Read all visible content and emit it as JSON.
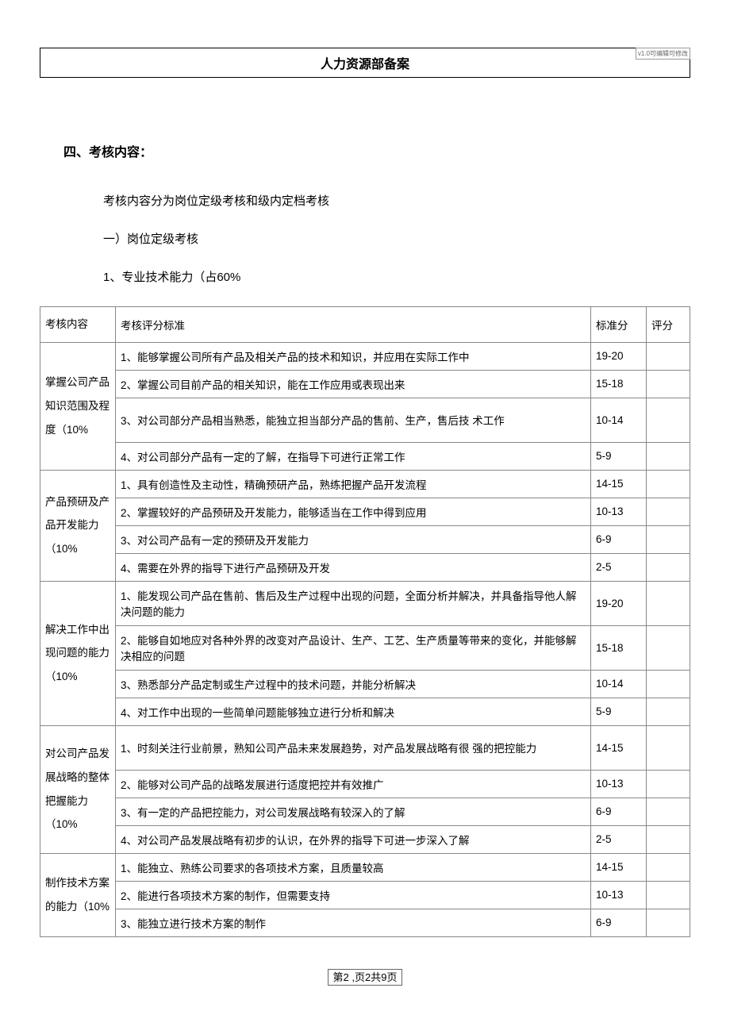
{
  "watermark": "v1.0可编辑可修改",
  "hr_record_title": "人力资源部备案",
  "section4_title": "四、考核内容：",
  "intro_line": "考核内容分为岗位定级考核和级内定档考核",
  "sub1_title": "一）岗位定级考核",
  "sub1_1": "1、专业技术能力（占60%",
  "headers": {
    "content": "考核内容",
    "criteria": "考核评分标准",
    "std": "标准分",
    "score": "评分"
  },
  "groups": [
    {
      "category": "掌握公司产品知识范围及程 度（10%",
      "rows": [
        {
          "text": "1、能够掌握公司所有产品及相关产品的技术和知识，并应用在实际工作中",
          "std": "19-20"
        },
        {
          "text": "2、掌握公司目前产品的相关知识，能在工作应用或表现出来",
          "std": "15-18"
        },
        {
          "text": "3、对公司部分产品相当熟悉，能独立担当部分产品的售前、生产，售后技 术工作",
          "std": "10-14",
          "tall": true
        },
        {
          "text": "4、对公司部分产品有一定的了解，在指导下可进行正常工作",
          "std": "5-9"
        }
      ]
    },
    {
      "category": "产品预研及产品开发能力（10%",
      "rows": [
        {
          "text": "1、具有创造性及主动性，精确预研产品，熟练把握产品开发流程",
          "std": "14-15"
        },
        {
          "text": "2、掌握较好的产品预研及开发能力，能够适当在工作中得到应用",
          "std": "10-13"
        },
        {
          "text": "3、对公司产品有一定的预研及开发能力",
          "std": "6-9"
        },
        {
          "text": "4、需要在外界的指导下进行产品预研及开发",
          "std": "2-5"
        }
      ]
    },
    {
      "category": "解决工作中出现问题的能力（10%",
      "rows": [
        {
          "text": "1、能发现公司产品在售前、售后及生产过程中出现的问题，全面分析并解决，并具备指导他人解决问题的能力",
          "std": "19-20",
          "tall": true
        },
        {
          "text": "2、能够自如地应对各种外界的改变对产品设计、生产、工艺、生产质量等带来的变化，并能够解决相应的问题",
          "std": "15-18",
          "tall": true
        },
        {
          "text": "3、熟悉部分产品定制或生产过程中的技术问题，并能分析解决",
          "std": "10-14"
        },
        {
          "text": "4、对工作中出现的一些简单问题能够独立进行分析和解决",
          "std": "5-9"
        }
      ]
    },
    {
      "category": "对公司产品发展战略的整体把握能力（10%",
      "rows": [
        {
          "text": "1、时刻关注行业前景，熟知公司产品未来发展趋势，对产品发展战略有很 强的把控能力",
          "std": "14-15",
          "tall": true
        },
        {
          "text": "2、能够对公司产品的战略发展进行适度把控并有效推广",
          "std": "10-13"
        },
        {
          "text": "3、有一定的产品把控能力，对公司发展战略有较深入的了解",
          "std": "6-9"
        },
        {
          "text": "4、对公司产品发展战略有初步的认识，在外界的指导下可进一步深入了解",
          "std": "2-5"
        }
      ]
    },
    {
      "category": "制作技术方案的能力（10%",
      "rows": [
        {
          "text": "1、能独立、熟练公司要求的各项技术方案，且质量较高",
          "std": "14-15"
        },
        {
          "text": "2、能进行各项技术方案的制作，但需要支持",
          "std": "10-13"
        },
        {
          "text": "3、能独立进行技术方案的制作",
          "std": "6-9"
        }
      ]
    }
  ],
  "footer": "第2 ,页2共9页"
}
